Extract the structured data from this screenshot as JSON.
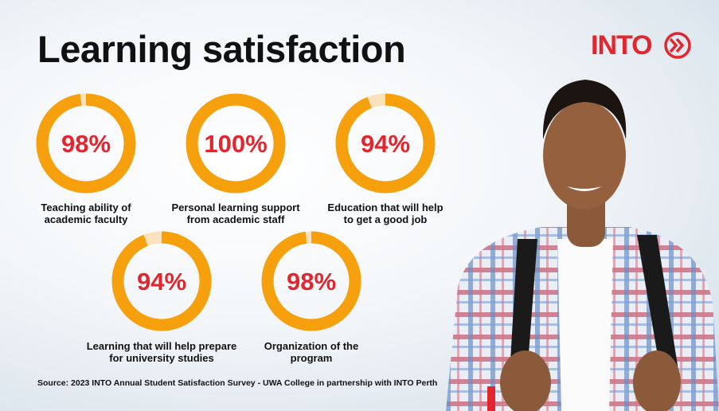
{
  "title": "Learning satisfaction",
  "logo": "INTO",
  "source": "Source: 2023 INTO Annual Student Satisfaction Survey - UWA College in partnership with INTO Perth",
  "chart_data": [
    {
      "type": "donut",
      "title": "Teaching ability of academic faculty",
      "values": [
        98
      ],
      "value_labels": [
        "98%"
      ],
      "color": "#f5a00c",
      "track_color": "#fbe2bc",
      "label_color": "#e3262e"
    },
    {
      "type": "donut",
      "title": "Personal learning support from academic staff",
      "values": [
        100
      ],
      "value_labels": [
        "100%"
      ],
      "color": "#f5a00c",
      "track_color": "#fbe2bc",
      "label_color": "#e3262e"
    },
    {
      "type": "donut",
      "title": "Education that will help to get a good job",
      "values": [
        94
      ],
      "value_labels": [
        "94%"
      ],
      "color": "#f5a00c",
      "track_color": "#fbe2bc",
      "label_color": "#e3262e"
    },
    {
      "type": "donut",
      "title": "Learning that will help prepare for university studies",
      "values": [
        94
      ],
      "value_labels": [
        "94%"
      ],
      "color": "#f5a00c",
      "track_color": "#fbe2bc",
      "label_color": "#e3262e"
    },
    {
      "type": "donut",
      "title": "Organization of the program",
      "values": [
        98
      ],
      "value_labels": [
        "98%"
      ],
      "color": "#f5a00c",
      "track_color": "#fbe2bc",
      "label_color": "#e3262e"
    }
  ]
}
